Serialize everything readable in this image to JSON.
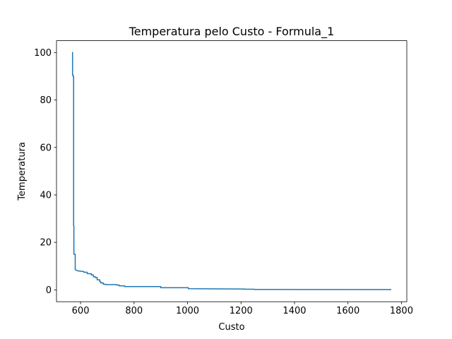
{
  "chart_data": {
    "type": "line",
    "title": "Temperatura pelo Custo - Formula_1",
    "xlabel": "Custo",
    "ylabel": "Temperatura",
    "xlim": [
      510,
      1820
    ],
    "ylim": [
      -5,
      105
    ],
    "xticks": [
      600,
      800,
      1000,
      1200,
      1400,
      1600,
      1800
    ],
    "yticks": [
      0,
      20,
      40,
      60,
      80,
      100
    ],
    "xtick_labels": [
      "600",
      "800",
      "1000",
      "1200",
      "1400",
      "1600",
      "1800"
    ],
    "ytick_labels": [
      "0",
      "20",
      "40",
      "60",
      "80",
      "100"
    ],
    "grid": false,
    "series": [
      {
        "color": "#1f77b4",
        "x": [
          570,
          570,
          572,
          572,
          574,
          574,
          575,
          575,
          580,
          580,
          590,
          612,
          612,
          625,
          625,
          640,
          640,
          648,
          648,
          655,
          655,
          662,
          662,
          672,
          672,
          676,
          676,
          685,
          685,
          692,
          692,
          735,
          735,
          745,
          745,
          765,
          765,
          900,
          900,
          1003,
          1003,
          1100,
          1215,
          1215,
          1250,
          1250,
          1760
        ],
        "y": [
          100,
          90.5,
          90.5,
          90,
          90,
          27,
          27,
          15,
          15,
          8.5,
          8,
          7.7,
          7.4,
          7.4,
          6.8,
          6.8,
          6.3,
          6.3,
          5.5,
          5.5,
          5.2,
          5.2,
          4.2,
          4.2,
          3.4,
          3.4,
          2.9,
          2.9,
          2.4,
          2.4,
          2.2,
          2.2,
          2.0,
          2.0,
          1.7,
          1.7,
          1.4,
          1.4,
          0.9,
          0.9,
          0.5,
          0.4,
          0.35,
          0.25,
          0.25,
          0.15,
          0.1
        ]
      }
    ]
  }
}
